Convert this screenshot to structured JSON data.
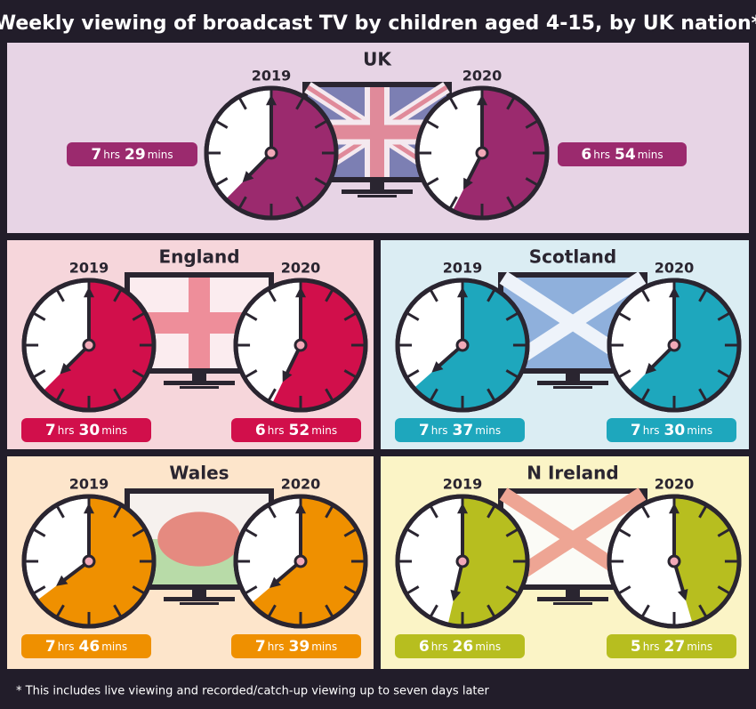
{
  "title": "Weekly viewing of broadcast TV by children aged 4-15, by UK nation*",
  "footnote": "* This includes live viewing and recorded/catch-up viewing up to seven days later",
  "years": [
    "2019",
    "2020"
  ],
  "units": {
    "hours": "hrs",
    "minutes": "mins"
  },
  "panels": [
    {
      "name": "UK",
      "color": "#9b2a6e",
      "background": "#e7d4e5",
      "values": [
        {
          "hours": 7,
          "minutes": 29
        },
        {
          "hours": 6,
          "minutes": 54
        }
      ]
    },
    {
      "name": "England",
      "color": "#d10f4b",
      "background": "#f6d6db",
      "values": [
        {
          "hours": 7,
          "minutes": 30
        },
        {
          "hours": 6,
          "minutes": 52
        }
      ]
    },
    {
      "name": "Scotland",
      "color": "#1ea7bd",
      "background": "#dbedf3",
      "values": [
        {
          "hours": 7,
          "minutes": 37
        },
        {
          "hours": 7,
          "minutes": 30
        }
      ]
    },
    {
      "name": "Wales",
      "color": "#ef9000",
      "background": "#fde5cb",
      "values": [
        {
          "hours": 7,
          "minutes": 46
        },
        {
          "hours": 7,
          "minutes": 39
        }
      ]
    },
    {
      "name": "N Ireland",
      "color": "#b7be1f",
      "background": "#fbf4c6",
      "values": [
        {
          "hours": 6,
          "minutes": 26
        },
        {
          "hours": 5,
          "minutes": 27
        }
      ]
    }
  ]
}
